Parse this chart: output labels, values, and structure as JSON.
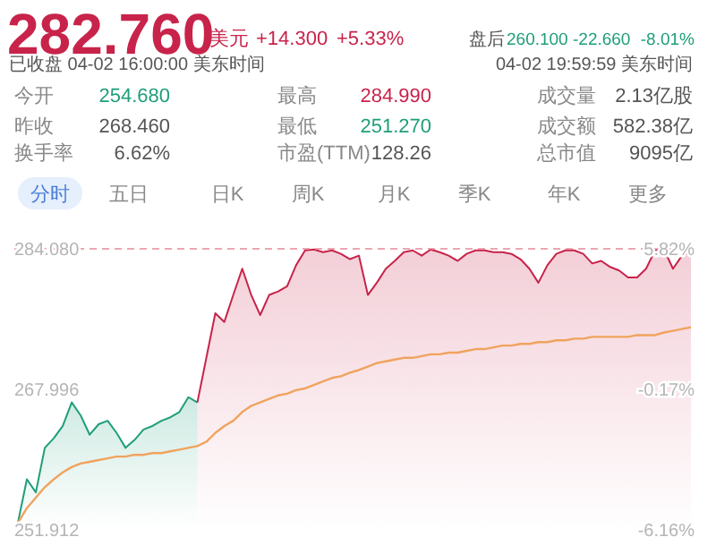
{
  "chart_data": [
    {
      "type": "other",
      "annotations": [
        "282.760",
        "美元",
        "+14.300",
        "+5.33%",
        "盘后",
        "260.100",
        "-22.660",
        "-8.01%",
        "已收盘 04-02 16:00:00 美东时间",
        "04-02 19:59:59 美东时间",
        "今开",
        "254.680",
        "最高",
        "284.990",
        "成交量",
        "2.13亿股",
        "昨收",
        "268.460",
        "最低",
        "251.270",
        "成交额",
        "582.38亿",
        "换手率",
        "6.62%",
        "市盈(TTM)",
        "128.26",
        "总市值",
        "9095亿",
        "分时",
        "五日",
        "日K",
        "周K",
        "月K",
        "季K",
        "年K",
        "更多"
      ]
    },
    {
      "type": "line",
      "categories": [
        null,
        null,
        null,
        null,
        null,
        null,
        null,
        null,
        null,
        null,
        null,
        null,
        null,
        null,
        null,
        null,
        null,
        null,
        null,
        null,
        null,
        null,
        null,
        null,
        null,
        null,
        null,
        null,
        null,
        null,
        null,
        null,
        null,
        null,
        null,
        null,
        null,
        null,
        null,
        null,
        null,
        null,
        null,
        null,
        null,
        null,
        null,
        null,
        null,
        null,
        null,
        null,
        null,
        null,
        null,
        null,
        null,
        null,
        null,
        null,
        null,
        null,
        null,
        null,
        null,
        null,
        null,
        null,
        null,
        null,
        null,
        null,
        null,
        null,
        null,
        null
      ],
      "series": [
        {
          "type": "area",
          "color": "#1f9e7a",
          "values": [
            252.7,
            257.7,
            256.2,
            261.3,
            262.4,
            263.8,
            266.5,
            265.0,
            262.8,
            264.0,
            264.4,
            263.0,
            261.3,
            262.2,
            263.4,
            263.8,
            264.4,
            264.8,
            265.4,
            267.1,
            266.5,
            null,
            null,
            null,
            null,
            null,
            null,
            null,
            null,
            null,
            null,
            null,
            null,
            null,
            null,
            null,
            null,
            null,
            null,
            null,
            null,
            null,
            null,
            null,
            null,
            null,
            null,
            null,
            null,
            null,
            null,
            null,
            null,
            null,
            null,
            null,
            null,
            null,
            null,
            null,
            null,
            null,
            null,
            null,
            null,
            null,
            null,
            null,
            null,
            null,
            null,
            null,
            null,
            null,
            null,
            null
          ]
        },
        {
          "type": "area",
          "color": "#c8234a",
          "values": [
            null,
            null,
            null,
            null,
            null,
            null,
            null,
            null,
            null,
            null,
            null,
            null,
            null,
            null,
            null,
            null,
            null,
            null,
            null,
            null,
            266.5,
            271.6,
            276.7,
            275.7,
            278.8,
            281.8,
            278.8,
            276.5,
            278.8,
            279.2,
            279.8,
            282.2,
            283.9,
            284.0,
            283.7,
            283.9,
            283.5,
            282.9,
            283.3,
            278.8,
            280.2,
            281.8,
            282.7,
            283.7,
            283.9,
            283.3,
            284.0,
            283.7,
            283.3,
            282.7,
            283.5,
            283.9,
            283.9,
            283.7,
            283.7,
            283.5,
            282.9,
            281.8,
            280.2,
            282.2,
            283.5,
            283.9,
            283.9,
            283.5,
            282.4,
            282.7,
            282.0,
            281.6,
            280.8,
            280.8,
            281.8,
            283.9,
            284.0,
            281.8,
            283.3,
            283.7
          ]
        },
        {
          "type": "line",
          "color": "#f0a35e",
          "values": [
            252.7,
            254.4,
            255.6,
            256.8,
            257.7,
            258.5,
            259.1,
            259.5,
            259.7,
            259.9,
            260.1,
            260.3,
            260.3,
            260.5,
            260.5,
            260.7,
            260.7,
            260.9,
            261.1,
            261.3,
            261.5,
            262.0,
            263.0,
            263.8,
            264.4,
            265.4,
            266.1,
            266.5,
            266.9,
            267.3,
            267.5,
            267.9,
            268.1,
            268.5,
            268.9,
            269.3,
            269.5,
            269.9,
            270.2,
            270.6,
            271.0,
            271.2,
            271.4,
            271.6,
            271.6,
            271.8,
            272.0,
            272.0,
            272.2,
            272.2,
            272.4,
            272.6,
            272.6,
            272.8,
            273.0,
            273.0,
            273.2,
            273.2,
            273.4,
            273.4,
            273.6,
            273.6,
            273.8,
            273.8,
            274.0,
            274.0,
            274.0,
            274.0,
            274.0,
            274.2,
            274.2,
            274.2,
            274.5,
            274.7,
            274.9,
            275.1
          ]
        }
      ],
      "ylim": [
        251.912,
        284.08
      ],
      "yticks": [
        {
          "value": 251.912,
          "label": "251.912"
        },
        {
          "value": 267.996,
          "label": "267.996"
        },
        {
          "value": 284.08,
          "label": "284.080"
        }
      ],
      "y2lim": [
        -6.16,
        5.82
      ],
      "y2ticks": [
        {
          "value": -6.16,
          "label": "-6.16%"
        },
        {
          "value": -0.17,
          "label": "-0.17%"
        },
        {
          "value": 5.82,
          "label": "5.82%"
        }
      ],
      "ref_lines": [
        {
          "axis": "y",
          "value": 284.08,
          "color": "#e58a9a",
          "line_style": "dashed"
        }
      ]
    }
  ]
}
